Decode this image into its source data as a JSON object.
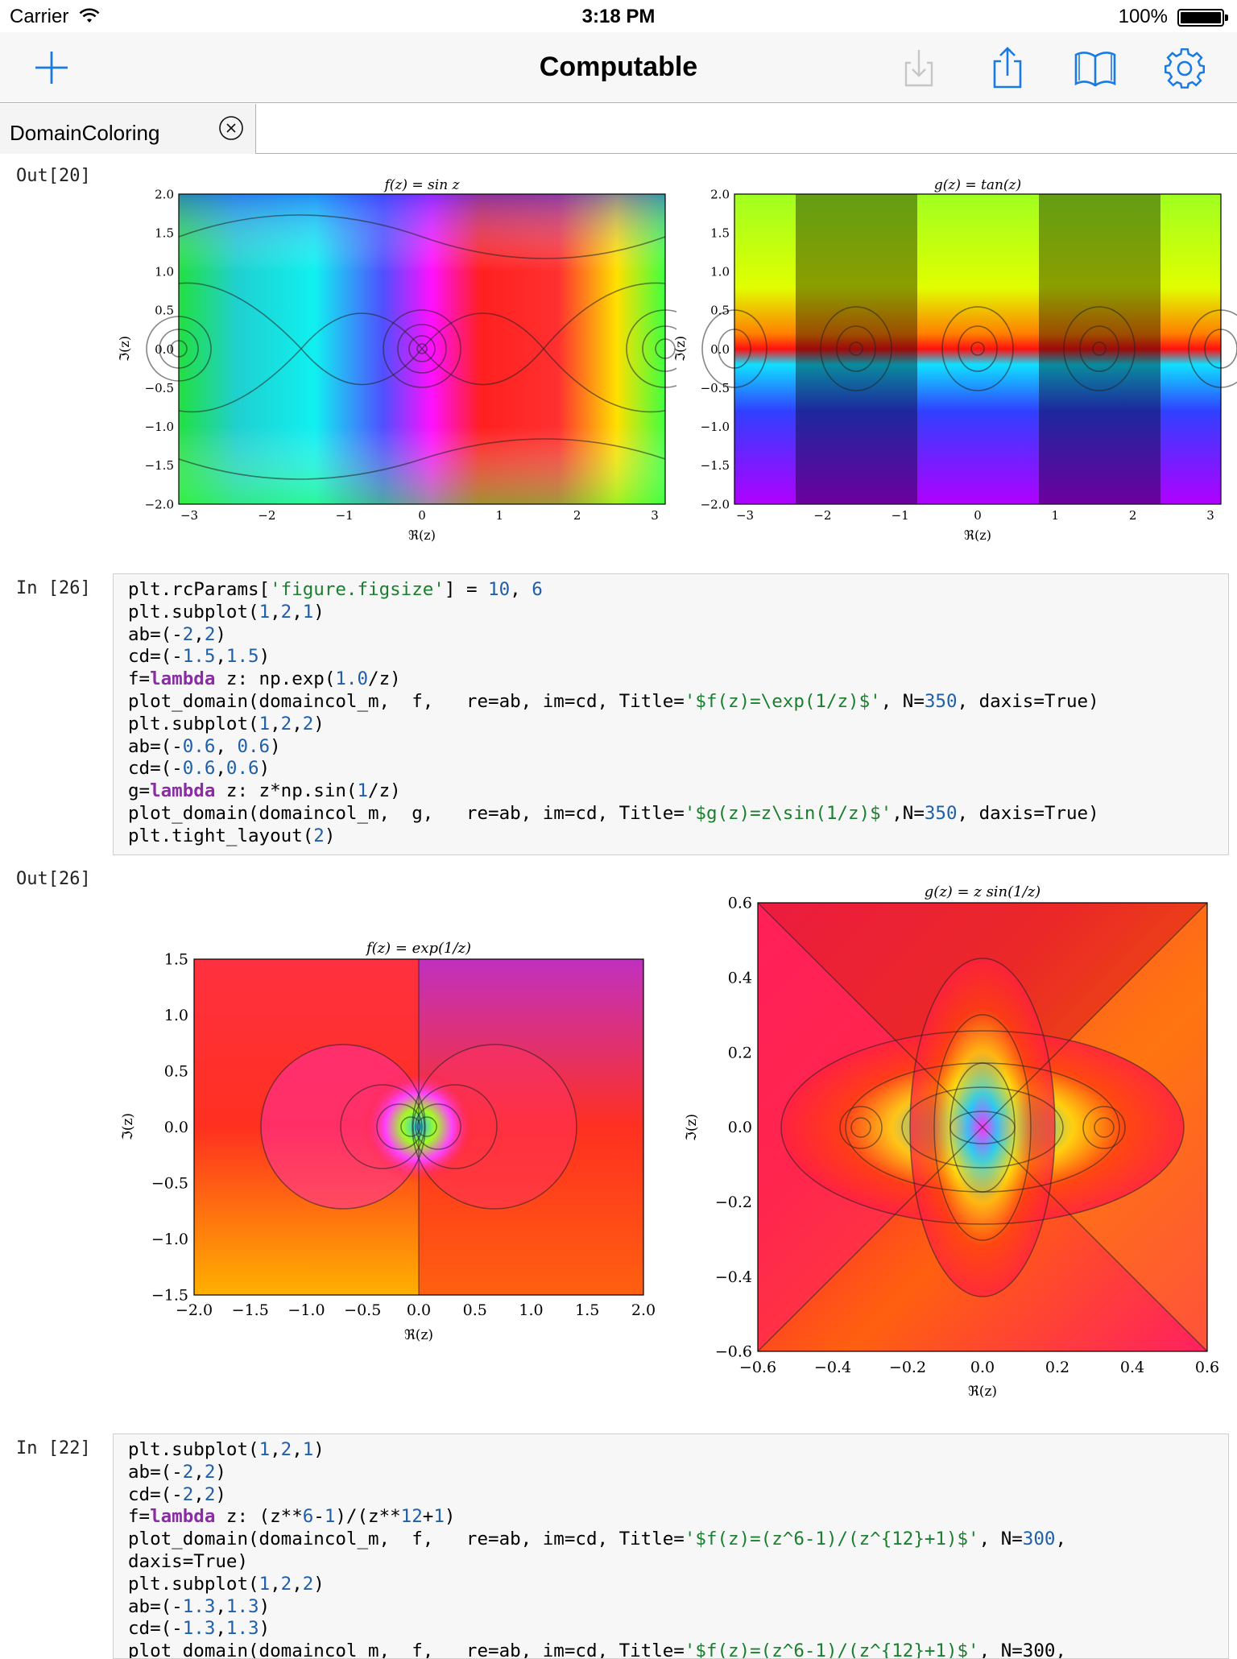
{
  "status": {
    "carrier": "Carrier",
    "time": "3:18 PM",
    "battery": "100%"
  },
  "nav": {
    "title": "Computable",
    "icons": [
      "plus-icon",
      "download-icon",
      "share-icon",
      "book-icon",
      "gear-icon"
    ]
  },
  "tab": {
    "label": "DomainColoring"
  },
  "cells": {
    "out20": "Out[20]",
    "in26": "In [26]",
    "out26": "Out[26]",
    "in22": "In [22]"
  },
  "plots": {
    "sin": {
      "title": "f(z) = sin z",
      "xlabel": "ℜ(z)",
      "ylabel": "ℑ(z)",
      "xticks": [
        "−3",
        "−2",
        "−1",
        "0",
        "1",
        "2",
        "3"
      ],
      "yticks": [
        "2.0",
        "1.5",
        "1.0",
        "0.5",
        "0.0",
        "−0.5",
        "−1.0",
        "−1.5",
        "−2.0"
      ]
    },
    "tan": {
      "title": "g(z) = tan(z)",
      "xlabel": "ℜ(z)",
      "ylabel": "ℑ(z)",
      "xticks": [
        "−3",
        "−2",
        "−1",
        "0",
        "1",
        "2",
        "3"
      ],
      "yticks": [
        "2.0",
        "1.5",
        "1.0",
        "0.5",
        "0.0",
        "−0.5",
        "−1.0",
        "−1.5",
        "−2.0"
      ]
    },
    "exp": {
      "title": "f(z) = exp(1/z)",
      "xlabel": "ℜ(z)",
      "ylabel": "ℑ(z)",
      "xticks": [
        "−2.0",
        "−1.5",
        "−1.0",
        "−0.5",
        "0.0",
        "0.5",
        "1.0",
        "1.5",
        "2.0"
      ],
      "yticks": [
        "1.5",
        "1.0",
        "0.5",
        "0.0",
        "−0.5",
        "−1.0",
        "−1.5"
      ]
    },
    "zsin": {
      "title": "g(z) = z sin(1/z)",
      "xlabel": "ℜ(z)",
      "ylabel": "ℑ(z)",
      "xticks": [
        "−0.6",
        "−0.4",
        "−0.2",
        "0.0",
        "0.2",
        "0.4",
        "0.6"
      ],
      "yticks": [
        "0.6",
        "0.4",
        "0.2",
        "0.0",
        "−0.2",
        "−0.4",
        "−0.6"
      ]
    }
  },
  "code26": [
    [
      [
        "t",
        "plt.rcParams["
      ],
      [
        "s",
        "'figure.figsize'"
      ],
      [
        "t",
        "] = "
      ],
      [
        "n",
        "10"
      ],
      [
        "t",
        ", "
      ],
      [
        "n",
        "6"
      ]
    ],
    [
      [
        "t",
        "plt.subplot("
      ],
      [
        "n",
        "1"
      ],
      [
        "t",
        ","
      ],
      [
        "n",
        "2"
      ],
      [
        "t",
        ","
      ],
      [
        "n",
        "1"
      ],
      [
        "t",
        ")"
      ]
    ],
    [
      [
        "t",
        "ab=(-"
      ],
      [
        "n",
        "2"
      ],
      [
        "t",
        ","
      ],
      [
        "n",
        "2"
      ],
      [
        "t",
        ")"
      ]
    ],
    [
      [
        "t",
        "cd=(-"
      ],
      [
        "n",
        "1.5"
      ],
      [
        "t",
        ","
      ],
      [
        "n",
        "1.5"
      ],
      [
        "t",
        ")"
      ]
    ],
    [
      [
        "t",
        "f="
      ],
      [
        "k",
        "lambda"
      ],
      [
        "t",
        " z: np.exp("
      ],
      [
        "n",
        "1.0"
      ],
      [
        "t",
        "/z)"
      ]
    ],
    [
      [
        "t",
        "plot_domain(domaincol_m,  f,   re=ab, im=cd, Title="
      ],
      [
        "s",
        "'$f(z)=\\exp(1/z)$'"
      ],
      [
        "t",
        ", N="
      ],
      [
        "n",
        "350"
      ],
      [
        "t",
        ", daxis=True)"
      ]
    ],
    [
      [
        "t",
        "plt.subplot("
      ],
      [
        "n",
        "1"
      ],
      [
        "t",
        ","
      ],
      [
        "n",
        "2"
      ],
      [
        "t",
        ","
      ],
      [
        "n",
        "2"
      ],
      [
        "t",
        ")"
      ]
    ],
    [
      [
        "t",
        "ab=(-"
      ],
      [
        "n",
        "0.6"
      ],
      [
        "t",
        ", "
      ],
      [
        "n",
        "0.6"
      ],
      [
        "t",
        ")"
      ]
    ],
    [
      [
        "t",
        "cd=(-"
      ],
      [
        "n",
        "0.6"
      ],
      [
        "t",
        ","
      ],
      [
        "n",
        "0.6"
      ],
      [
        "t",
        ")"
      ]
    ],
    [
      [
        "t",
        "g="
      ],
      [
        "k",
        "lambda"
      ],
      [
        "t",
        " z: z*np.sin("
      ],
      [
        "n",
        "1"
      ],
      [
        "t",
        "/z)"
      ]
    ],
    [
      [
        "t",
        "plot_domain(domaincol_m,  g,   re=ab, im=cd, Title="
      ],
      [
        "s",
        "'$g(z)=z\\sin(1/z)$'"
      ],
      [
        "t",
        ",N="
      ],
      [
        "n",
        "350"
      ],
      [
        "t",
        ", daxis=True)"
      ]
    ],
    [
      [
        "t",
        "plt.tight_layout("
      ],
      [
        "n",
        "2"
      ],
      [
        "t",
        ")"
      ]
    ]
  ],
  "code22": [
    [
      [
        "t",
        "plt.subplot("
      ],
      [
        "n",
        "1"
      ],
      [
        "t",
        ","
      ],
      [
        "n",
        "2"
      ],
      [
        "t",
        ","
      ],
      [
        "n",
        "1"
      ],
      [
        "t",
        ")"
      ]
    ],
    [
      [
        "t",
        "ab=(-"
      ],
      [
        "n",
        "2"
      ],
      [
        "t",
        ","
      ],
      [
        "n",
        "2"
      ],
      [
        "t",
        ")"
      ]
    ],
    [
      [
        "t",
        "cd=(-"
      ],
      [
        "n",
        "2"
      ],
      [
        "t",
        ","
      ],
      [
        "n",
        "2"
      ],
      [
        "t",
        ")"
      ]
    ],
    [
      [
        "t",
        "f="
      ],
      [
        "k",
        "lambda"
      ],
      [
        "t",
        " z: (z**"
      ],
      [
        "n",
        "6"
      ],
      [
        "t",
        "-"
      ],
      [
        "n",
        "1"
      ],
      [
        "t",
        ")/(z**"
      ],
      [
        "n",
        "12"
      ],
      [
        "t",
        "+"
      ],
      [
        "n",
        "1"
      ],
      [
        "t",
        ")"
      ]
    ],
    [
      [
        "t",
        "plot_domain(domaincol_m,  f,   re=ab, im=cd, Title="
      ],
      [
        "s",
        "'$f(z)=(z^6-1)/(z^{12}+1)$'"
      ],
      [
        "t",
        ", N="
      ],
      [
        "n",
        "300"
      ],
      [
        "t",
        ","
      ]
    ],
    [
      [
        "t",
        "daxis=True)"
      ]
    ],
    [
      [
        "t",
        "plt.subplot("
      ],
      [
        "n",
        "1"
      ],
      [
        "t",
        ","
      ],
      [
        "n",
        "2"
      ],
      [
        "t",
        ","
      ],
      [
        "n",
        "2"
      ],
      [
        "t",
        ")"
      ]
    ],
    [
      [
        "t",
        "ab=(-"
      ],
      [
        "n",
        "1.3"
      ],
      [
        "t",
        ","
      ],
      [
        "n",
        "1.3"
      ],
      [
        "t",
        ")"
      ]
    ],
    [
      [
        "t",
        "cd=(-"
      ],
      [
        "n",
        "1.3"
      ],
      [
        "t",
        ","
      ],
      [
        "n",
        "1.3"
      ],
      [
        "t",
        ")"
      ]
    ],
    [
      [
        "t",
        "plot_domain(domaincol_m,  f,   re=ab, im=cd, Title="
      ],
      [
        "s",
        "'$f(z)=(z^6-1)/(z^{12}+1)$'"
      ],
      [
        "t",
        ", N=300,"
      ]
    ]
  ]
}
